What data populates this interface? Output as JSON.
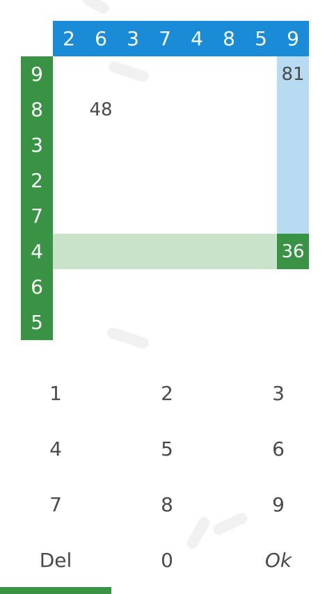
{
  "grid": {
    "top_header": [
      "2",
      "6",
      "3",
      "7",
      "4",
      "8",
      "5",
      "9"
    ],
    "left_header": [
      "9",
      "8",
      "3",
      "2",
      "7",
      "4",
      "6",
      "5"
    ],
    "filled_cells": [
      {
        "row": 0,
        "col": 7,
        "value": "81"
      },
      {
        "row": 1,
        "col": 1,
        "value": "48"
      }
    ],
    "active_cell": {
      "row": 5,
      "col": 7,
      "value": "36"
    },
    "highlight_color_row": "#c8e3c9",
    "highlight_color_col": "#b7dcf2",
    "header_top_color": "#1a8bd6",
    "header_left_color": "#3a9345"
  },
  "keypad": {
    "keys": [
      "1",
      "2",
      "3",
      "4",
      "5",
      "6",
      "7",
      "8",
      "9",
      "Del",
      "0",
      "Ok"
    ]
  },
  "progress": {
    "fraction": 0.333,
    "color": "#3a9345"
  }
}
